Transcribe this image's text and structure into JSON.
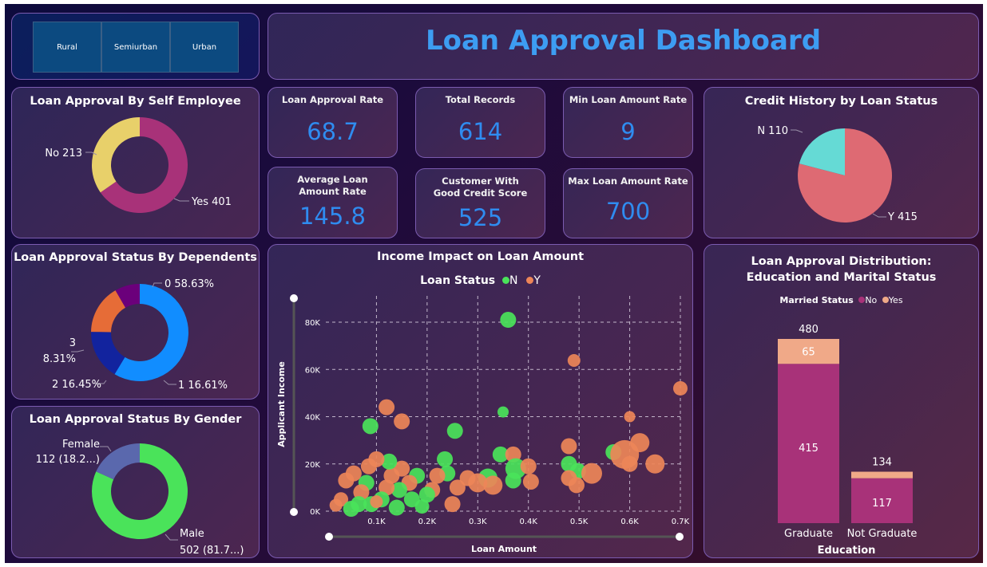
{
  "header": {
    "title": "Loan Approval Dashboard"
  },
  "slicer": {
    "items": [
      "Rural",
      "Semiurban",
      "Urban"
    ]
  },
  "kpis": [
    {
      "label": "Loan Approval Rate",
      "value": "68.7"
    },
    {
      "label": "Total Records",
      "value": "614"
    },
    {
      "label": "Min Loan Amount Rate",
      "value": "9"
    },
    {
      "label": "Average Loan Amount Rate",
      "value": "145.8"
    },
    {
      "label": "Customer With Good Credit Score",
      "value": "525"
    },
    {
      "label": "Max Loan Amount Rate",
      "value": "700"
    }
  ],
  "colors": {
    "title_blue": "#3d9df2",
    "kpi_blue": "#2f8cf0",
    "self_yes": "#a83279",
    "self_no": "#e8d06a",
    "dep_0": "#118dff",
    "dep_1": "#12239e",
    "dep_2": "#e66c37",
    "dep_3": "#6b007b",
    "male": "#4ae35a",
    "female": "#5a68ad",
    "credit_y": "#de6a73",
    "credit_n": "#65dad5",
    "married_no": "#a83279",
    "married_yes": "#f0a988",
    "scatter_n": "#4ae35a",
    "scatter_y": "#ed8558"
  },
  "chart_data": [
    {
      "id": "self_employee",
      "type": "pie",
      "title": "Loan Approval By Self Employee",
      "donut": true,
      "slices": [
        {
          "label": "Yes",
          "value": 401,
          "text": "Yes 401"
        },
        {
          "label": "No",
          "value": 213,
          "text": "No 213"
        }
      ]
    },
    {
      "id": "dependents",
      "type": "pie",
      "title": "Loan Approval Status By Dependents",
      "donut": true,
      "slices": [
        {
          "label": "0",
          "value": 58.63,
          "text": "0 58.63%"
        },
        {
          "label": "1",
          "value": 16.61,
          "text": "1 16.61%"
        },
        {
          "label": "2",
          "value": 16.45,
          "text": "2 16.45%"
        },
        {
          "label": "3",
          "value": 8.31,
          "text_line1": "3",
          "text_line2": "8.31%"
        }
      ]
    },
    {
      "id": "gender",
      "type": "pie",
      "title": "Loan Approval Status By Gender",
      "donut": true,
      "slices": [
        {
          "label": "Male",
          "value": 502,
          "text_line1": "Male",
          "text_line2": "502 (81.7...)"
        },
        {
          "label": "Female",
          "value": 112,
          "text_line1": "Female",
          "text_line2": "112 (18.2...)"
        }
      ]
    },
    {
      "id": "credit_history",
      "type": "pie",
      "title": "Credit History by Loan Status",
      "donut": false,
      "slices": [
        {
          "label": "Y",
          "value": 415,
          "text": "Y 415"
        },
        {
          "label": "N",
          "value": 110,
          "text": "N 110"
        }
      ]
    },
    {
      "id": "income_scatter",
      "type": "scatter",
      "title": "Income Impact on Loan Amount",
      "legend_title": "Loan Status",
      "legend": [
        "N",
        "Y"
      ],
      "xlabel": "Loan Amount",
      "ylabel": "Applicant Income",
      "xlim": [
        0,
        700
      ],
      "ylim": [
        0,
        85000
      ],
      "xticks": [
        "0.1K",
        "0.2K",
        "0.3K",
        "0.4K",
        "0.5K",
        "0.6K",
        "0.7K"
      ],
      "yticks": [
        "0K",
        "20K",
        "40K",
        "60K",
        "80K"
      ],
      "grid": true,
      "points": [
        {
          "s": "N",
          "x": 360,
          "y": 81000,
          "r": 10
        },
        {
          "s": "Y",
          "x": 490,
          "y": 63800,
          "r": 8
        },
        {
          "s": "Y",
          "x": 700,
          "y": 52000,
          "r": 9
        },
        {
          "s": "Y",
          "x": 120,
          "y": 44000,
          "r": 10
        },
        {
          "s": "Y",
          "x": 150,
          "y": 38000,
          "r": 10
        },
        {
          "s": "N",
          "x": 350,
          "y": 42000,
          "r": 7
        },
        {
          "s": "N",
          "x": 88,
          "y": 36000,
          "r": 10
        },
        {
          "s": "N",
          "x": 255,
          "y": 34000,
          "r": 10
        },
        {
          "s": "Y",
          "x": 600,
          "y": 40000,
          "r": 7
        },
        {
          "s": "Y",
          "x": 480,
          "y": 27500,
          "r": 10
        },
        {
          "s": "N",
          "x": 568,
          "y": 25000,
          "r": 10
        },
        {
          "s": "Y",
          "x": 620,
          "y": 29000,
          "r": 12
        },
        {
          "s": "Y",
          "x": 590,
          "y": 24000,
          "r": 18
        },
        {
          "s": "Y",
          "x": 650,
          "y": 20000,
          "r": 12
        },
        {
          "s": "Y",
          "x": 600,
          "y": 20000,
          "r": 10
        },
        {
          "s": "N",
          "x": 480,
          "y": 20000,
          "r": 10
        },
        {
          "s": "N",
          "x": 498,
          "y": 17000,
          "r": 10
        },
        {
          "s": "Y",
          "x": 525,
          "y": 16000,
          "r": 13
        },
        {
          "s": "Y",
          "x": 480,
          "y": 14000,
          "r": 10
        },
        {
          "s": "Y",
          "x": 495,
          "y": 11000,
          "r": 10
        },
        {
          "s": "N",
          "x": 345,
          "y": 24000,
          "r": 10
        },
        {
          "s": "Y",
          "x": 370,
          "y": 24000,
          "r": 10
        },
        {
          "s": "N",
          "x": 375,
          "y": 18000,
          "r": 13
        },
        {
          "s": "Y",
          "x": 400,
          "y": 19000,
          "r": 10
        },
        {
          "s": "Y",
          "x": 405,
          "y": 12500,
          "r": 10
        },
        {
          "s": "N",
          "x": 370,
          "y": 13000,
          "r": 10
        },
        {
          "s": "N",
          "x": 235,
          "y": 22000,
          "r": 10
        },
        {
          "s": "N",
          "x": 240,
          "y": 16000,
          "r": 10
        },
        {
          "s": "N",
          "x": 320,
          "y": 14000,
          "r": 12
        },
        {
          "s": "Y",
          "x": 300,
          "y": 12000,
          "r": 12
        },
        {
          "s": "Y",
          "x": 330,
          "y": 11000,
          "r": 12
        },
        {
          "s": "Y",
          "x": 280,
          "y": 14000,
          "r": 10
        },
        {
          "s": "Y",
          "x": 260,
          "y": 10000,
          "r": 10
        },
        {
          "s": "Y",
          "x": 250,
          "y": 3000,
          "r": 10
        },
        {
          "s": "Y",
          "x": 220,
          "y": 15000,
          "r": 10
        },
        {
          "s": "Y",
          "x": 210,
          "y": 9000,
          "r": 10
        },
        {
          "s": "N",
          "x": 200,
          "y": 7000,
          "r": 10
        },
        {
          "s": "N",
          "x": 180,
          "y": 15000,
          "r": 10
        },
        {
          "s": "Y",
          "x": 165,
          "y": 12000,
          "r": 10
        },
        {
          "s": "N",
          "x": 170,
          "y": 5000,
          "r": 10
        },
        {
          "s": "Y",
          "x": 150,
          "y": 18000,
          "r": 10
        },
        {
          "s": "N",
          "x": 145,
          "y": 9000,
          "r": 10
        },
        {
          "s": "Y",
          "x": 130,
          "y": 15000,
          "r": 10
        },
        {
          "s": "N",
          "x": 125,
          "y": 21000,
          "r": 10
        },
        {
          "s": "Y",
          "x": 120,
          "y": 10000,
          "r": 10
        },
        {
          "s": "N",
          "x": 110,
          "y": 5000,
          "r": 10
        },
        {
          "s": "Y",
          "x": 100,
          "y": 22000,
          "r": 10
        },
        {
          "s": "Y",
          "x": 85,
          "y": 19000,
          "r": 10
        },
        {
          "s": "N",
          "x": 80,
          "y": 12000,
          "r": 10
        },
        {
          "s": "Y",
          "x": 70,
          "y": 8000,
          "r": 10
        },
        {
          "s": "N",
          "x": 65,
          "y": 3000,
          "r": 10
        },
        {
          "s": "Y",
          "x": 55,
          "y": 16000,
          "r": 10
        },
        {
          "s": "Y",
          "x": 40,
          "y": 13000,
          "r": 10
        },
        {
          "s": "Y",
          "x": 30,
          "y": 5000,
          "r": 9
        },
        {
          "s": "N",
          "x": 50,
          "y": 1000,
          "r": 10
        },
        {
          "s": "Y",
          "x": 20,
          "y": 2500,
          "r": 8
        },
        {
          "s": "N",
          "x": 90,
          "y": 3000,
          "r": 10
        },
        {
          "s": "N",
          "x": 140,
          "y": 1500,
          "r": 10
        },
        {
          "s": "N",
          "x": 190,
          "y": 2000,
          "r": 9
        },
        {
          "s": "Y",
          "x": 100,
          "y": 4000,
          "r": 8
        }
      ]
    },
    {
      "id": "education_marital",
      "type": "bar",
      "stacked": true,
      "title": "Loan Approval Distribution: Education and Marital Status",
      "legend_title": "Married Status",
      "legend": [
        "No",
        "Yes"
      ],
      "xlabel": "Education",
      "categories": [
        "Graduate",
        "Not Graduate"
      ],
      "series": [
        {
          "name": "No",
          "values": [
            415,
            117
          ]
        },
        {
          "name": "Yes",
          "values": [
            65,
            17
          ]
        }
      ],
      "totals": [
        480,
        134
      ],
      "segment_labels": {
        "No": [
          "415",
          "117"
        ],
        "Yes": [
          "65",
          ""
        ]
      },
      "ylim": [
        0,
        480
      ]
    }
  ]
}
